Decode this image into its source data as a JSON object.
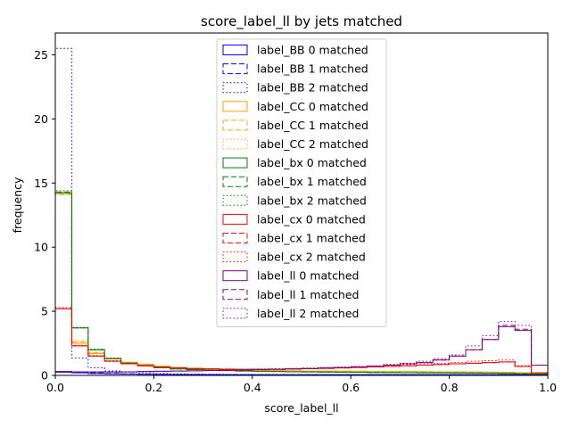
{
  "chart_data": {
    "type": "histogram",
    "title": "score_label_ll by jets matched",
    "xlabel": "score_label_ll",
    "ylabel": "frequency",
    "xlim": [
      0,
      1
    ],
    "ylim": [
      0,
      26.7
    ],
    "x_ticks": [
      "0.0",
      "0.2",
      "0.4",
      "0.6",
      "0.8",
      "1.0"
    ],
    "y_ticks": [
      "0",
      "5",
      "10",
      "15",
      "20",
      "25"
    ],
    "legend_location": "upper center",
    "bin_width": 0.0333,
    "series": [
      {
        "name": "label_BB 0 matched",
        "color": "#0000ff",
        "linestyle": "solid",
        "values": [
          0.25,
          0.2,
          0.15,
          0.12,
          0.1,
          0.09,
          0.08,
          0.07,
          0.06,
          0.06,
          0.05,
          0.05,
          0.05,
          0.05,
          0.05,
          0.05,
          0.05,
          0.05,
          0.05,
          0.05,
          0.05,
          0.05,
          0.05,
          0.05,
          0.05,
          0.05,
          0.05,
          0.05,
          0.05,
          0.05
        ]
      },
      {
        "name": "label_BB 1 matched",
        "color": "#0000ff",
        "linestyle": "dashed",
        "values": [
          0.3,
          0.25,
          0.2,
          0.15,
          0.12,
          0.1,
          0.08,
          0.07,
          0.06,
          0.06,
          0.05,
          0.05,
          0.05,
          0.05,
          0.05,
          0.05,
          0.05,
          0.05,
          0.05,
          0.05,
          0.05,
          0.05,
          0.05,
          0.05,
          0.05,
          0.05,
          0.05,
          0.05,
          0.05,
          0.05
        ]
      },
      {
        "name": "label_BB 2 matched",
        "color": "#0000ff",
        "linestyle": "dotted",
        "values": [
          25.5,
          1.35,
          0.6,
          0.35,
          0.25,
          0.2,
          0.15,
          0.12,
          0.1,
          0.09,
          0.08,
          0.07,
          0.06,
          0.06,
          0.05,
          0.05,
          0.05,
          0.05,
          0.05,
          0.05,
          0.05,
          0.05,
          0.05,
          0.05,
          0.05,
          0.05,
          0.05,
          0.05,
          0.05,
          0.05
        ]
      },
      {
        "name": "label_CC 0 matched",
        "color": "#ffa500",
        "linestyle": "solid",
        "values": [
          14.3,
          2.5,
          1.7,
          1.3,
          1.0,
          0.85,
          0.7,
          0.6,
          0.55,
          0.5,
          0.45,
          0.42,
          0.4,
          0.38,
          0.36,
          0.35,
          0.34,
          0.33,
          0.32,
          0.31,
          0.3,
          0.3,
          0.29,
          0.28,
          0.27,
          0.26,
          0.25,
          0.24,
          0.2,
          0.15
        ]
      },
      {
        "name": "label_CC 1 matched",
        "color": "#ffa500",
        "linestyle": "dashed",
        "values": [
          14.1,
          2.6,
          1.75,
          1.3,
          1.0,
          0.85,
          0.7,
          0.6,
          0.55,
          0.5,
          0.46,
          0.43,
          0.4,
          0.38,
          0.36,
          0.35,
          0.34,
          0.33,
          0.32,
          0.31,
          0.3,
          0.3,
          0.29,
          0.28,
          0.27,
          0.26,
          0.25,
          0.24,
          0.2,
          0.15
        ]
      },
      {
        "name": "label_CC 2 matched",
        "color": "#ffa500",
        "linestyle": "dotted",
        "values": [
          14.2,
          2.7,
          1.8,
          1.35,
          1.05,
          0.88,
          0.72,
          0.62,
          0.56,
          0.5,
          0.46,
          0.43,
          0.41,
          0.39,
          0.37,
          0.35,
          0.34,
          0.33,
          0.32,
          0.31,
          0.3,
          0.3,
          0.29,
          0.28,
          0.27,
          0.26,
          0.25,
          0.24,
          0.2,
          0.15
        ]
      },
      {
        "name": "label_bx 0 matched",
        "color": "#008000",
        "linestyle": "solid",
        "values": [
          14.2,
          3.7,
          2.0,
          1.3,
          0.95,
          0.75,
          0.6,
          0.5,
          0.45,
          0.4,
          0.37,
          0.34,
          0.32,
          0.3,
          0.28,
          0.27,
          0.26,
          0.25,
          0.24,
          0.23,
          0.22,
          0.21,
          0.2,
          0.2,
          0.19,
          0.18,
          0.17,
          0.16,
          0.14,
          0.1
        ]
      },
      {
        "name": "label_bx 1 matched",
        "color": "#008000",
        "linestyle": "dashed",
        "values": [
          14.3,
          3.7,
          2.0,
          1.3,
          0.95,
          0.75,
          0.6,
          0.5,
          0.45,
          0.4,
          0.37,
          0.34,
          0.32,
          0.3,
          0.28,
          0.27,
          0.26,
          0.25,
          0.24,
          0.23,
          0.22,
          0.21,
          0.2,
          0.2,
          0.19,
          0.18,
          0.17,
          0.16,
          0.14,
          0.1
        ]
      },
      {
        "name": "label_bx 2 matched",
        "color": "#008000",
        "linestyle": "dotted",
        "values": [
          14.4,
          3.75,
          2.05,
          1.35,
          0.98,
          0.78,
          0.62,
          0.52,
          0.46,
          0.41,
          0.38,
          0.35,
          0.33,
          0.31,
          0.29,
          0.28,
          0.27,
          0.26,
          0.25,
          0.24,
          0.23,
          0.22,
          0.21,
          0.2,
          0.19,
          0.18,
          0.17,
          0.16,
          0.14,
          0.1
        ]
      },
      {
        "name": "label_cx 0 matched",
        "color": "#ff0000",
        "linestyle": "solid",
        "values": [
          5.2,
          2.3,
          1.5,
          1.1,
          0.9,
          0.75,
          0.65,
          0.58,
          0.53,
          0.5,
          0.48,
          0.47,
          0.47,
          0.48,
          0.5,
          0.52,
          0.55,
          0.58,
          0.62,
          0.66,
          0.7,
          0.75,
          0.8,
          0.85,
          0.9,
          0.95,
          1.0,
          1.05,
          0.7,
          0.2
        ]
      },
      {
        "name": "label_cx 1 matched",
        "color": "#ff0000",
        "linestyle": "dashed",
        "values": [
          5.2,
          2.3,
          1.5,
          1.1,
          0.9,
          0.75,
          0.65,
          0.58,
          0.53,
          0.5,
          0.48,
          0.47,
          0.47,
          0.48,
          0.5,
          0.52,
          0.55,
          0.58,
          0.62,
          0.66,
          0.7,
          0.75,
          0.8,
          0.85,
          0.9,
          0.95,
          1.0,
          1.05,
          0.7,
          0.2
        ]
      },
      {
        "name": "label_cx 2 matched",
        "color": "#ff0000",
        "linestyle": "dotted",
        "values": [
          5.3,
          2.35,
          1.55,
          1.15,
          0.92,
          0.78,
          0.67,
          0.6,
          0.55,
          0.52,
          0.5,
          0.49,
          0.5,
          0.52,
          0.55,
          0.58,
          0.62,
          0.66,
          0.7,
          0.75,
          0.8,
          0.85,
          0.9,
          0.95,
          1.0,
          1.1,
          1.15,
          1.2,
          0.75,
          0.2
        ]
      },
      {
        "name": "label_ll 0 matched",
        "color": "#800080",
        "linestyle": "solid",
        "values": [
          0.3,
          0.28,
          0.27,
          0.27,
          0.28,
          0.3,
          0.32,
          0.34,
          0.36,
          0.38,
          0.4,
          0.42,
          0.45,
          0.48,
          0.5,
          0.53,
          0.57,
          0.6,
          0.65,
          0.7,
          0.8,
          0.9,
          1.0,
          1.2,
          1.5,
          2.0,
          2.8,
          3.8,
          3.5,
          0.8
        ]
      },
      {
        "name": "label_ll 1 matched",
        "color": "#800080",
        "linestyle": "dashed",
        "values": [
          0.3,
          0.28,
          0.27,
          0.27,
          0.28,
          0.3,
          0.32,
          0.34,
          0.36,
          0.38,
          0.4,
          0.42,
          0.45,
          0.48,
          0.5,
          0.53,
          0.57,
          0.6,
          0.65,
          0.7,
          0.8,
          0.9,
          1.0,
          1.2,
          1.5,
          2.0,
          2.8,
          3.9,
          3.6,
          0.8
        ]
      },
      {
        "name": "label_ll 2 matched",
        "color": "#800080",
        "linestyle": "dotted",
        "values": [
          0.3,
          0.28,
          0.27,
          0.27,
          0.28,
          0.3,
          0.32,
          0.34,
          0.36,
          0.38,
          0.4,
          0.42,
          0.45,
          0.48,
          0.5,
          0.53,
          0.57,
          0.6,
          0.65,
          0.7,
          0.85,
          0.95,
          1.1,
          1.3,
          1.6,
          2.3,
          3.1,
          4.2,
          3.9,
          0.8
        ]
      }
    ]
  }
}
